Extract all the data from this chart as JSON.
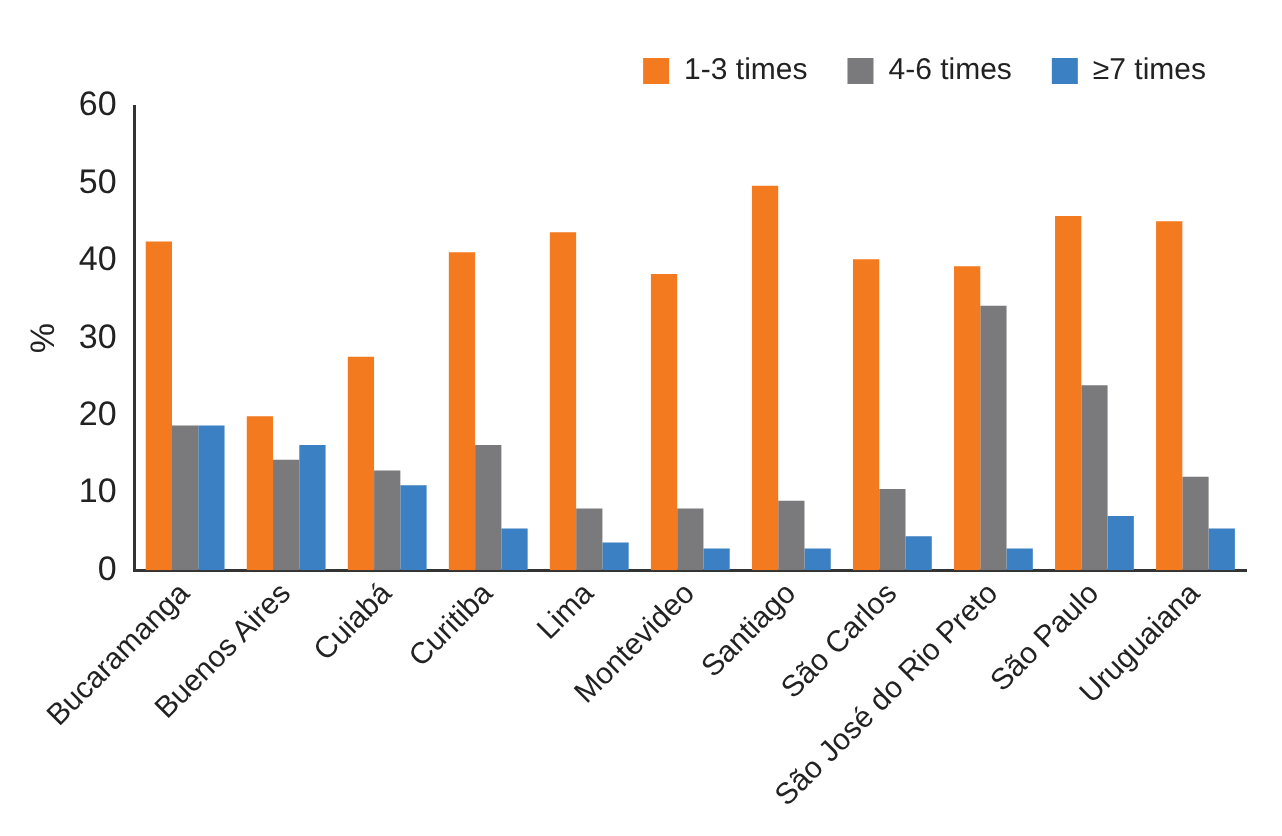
{
  "chart_data": {
    "type": "bar",
    "ylabel": "%",
    "categories": [
      "Bucaramanga",
      "Buenos Aires",
      "Cuiabá",
      "Curitiba",
      "Lima",
      "Montevideo",
      "Santiago",
      "São Carlos",
      "São José do Rio Preto",
      "São Paulo",
      "Uruguaiana"
    ],
    "series": [
      {
        "name": "1-3 times",
        "color": "#f47a20",
        "values": [
          42.5,
          19.9,
          27.6,
          41.1,
          43.7,
          38.3,
          49.7,
          40.2,
          39.3,
          45.8,
          45.1
        ]
      },
      {
        "name": "4-6 times",
        "color": "#7a7a7c",
        "values": [
          18.7,
          14.3,
          12.9,
          16.2,
          8.0,
          8.0,
          9.0,
          10.5,
          34.2,
          23.9,
          12.1
        ]
      },
      {
        "name": "≥7 times",
        "color": "#3a80c3",
        "values": [
          18.7,
          16.2,
          11.0,
          5.4,
          3.6,
          2.8,
          2.8,
          4.4,
          2.8,
          7.0,
          5.4
        ]
      }
    ],
    "ylim": [
      0,
      60
    ],
    "yticks": [
      0,
      10,
      20,
      30,
      40,
      50,
      60
    ],
    "grid": false,
    "legend": "top"
  }
}
